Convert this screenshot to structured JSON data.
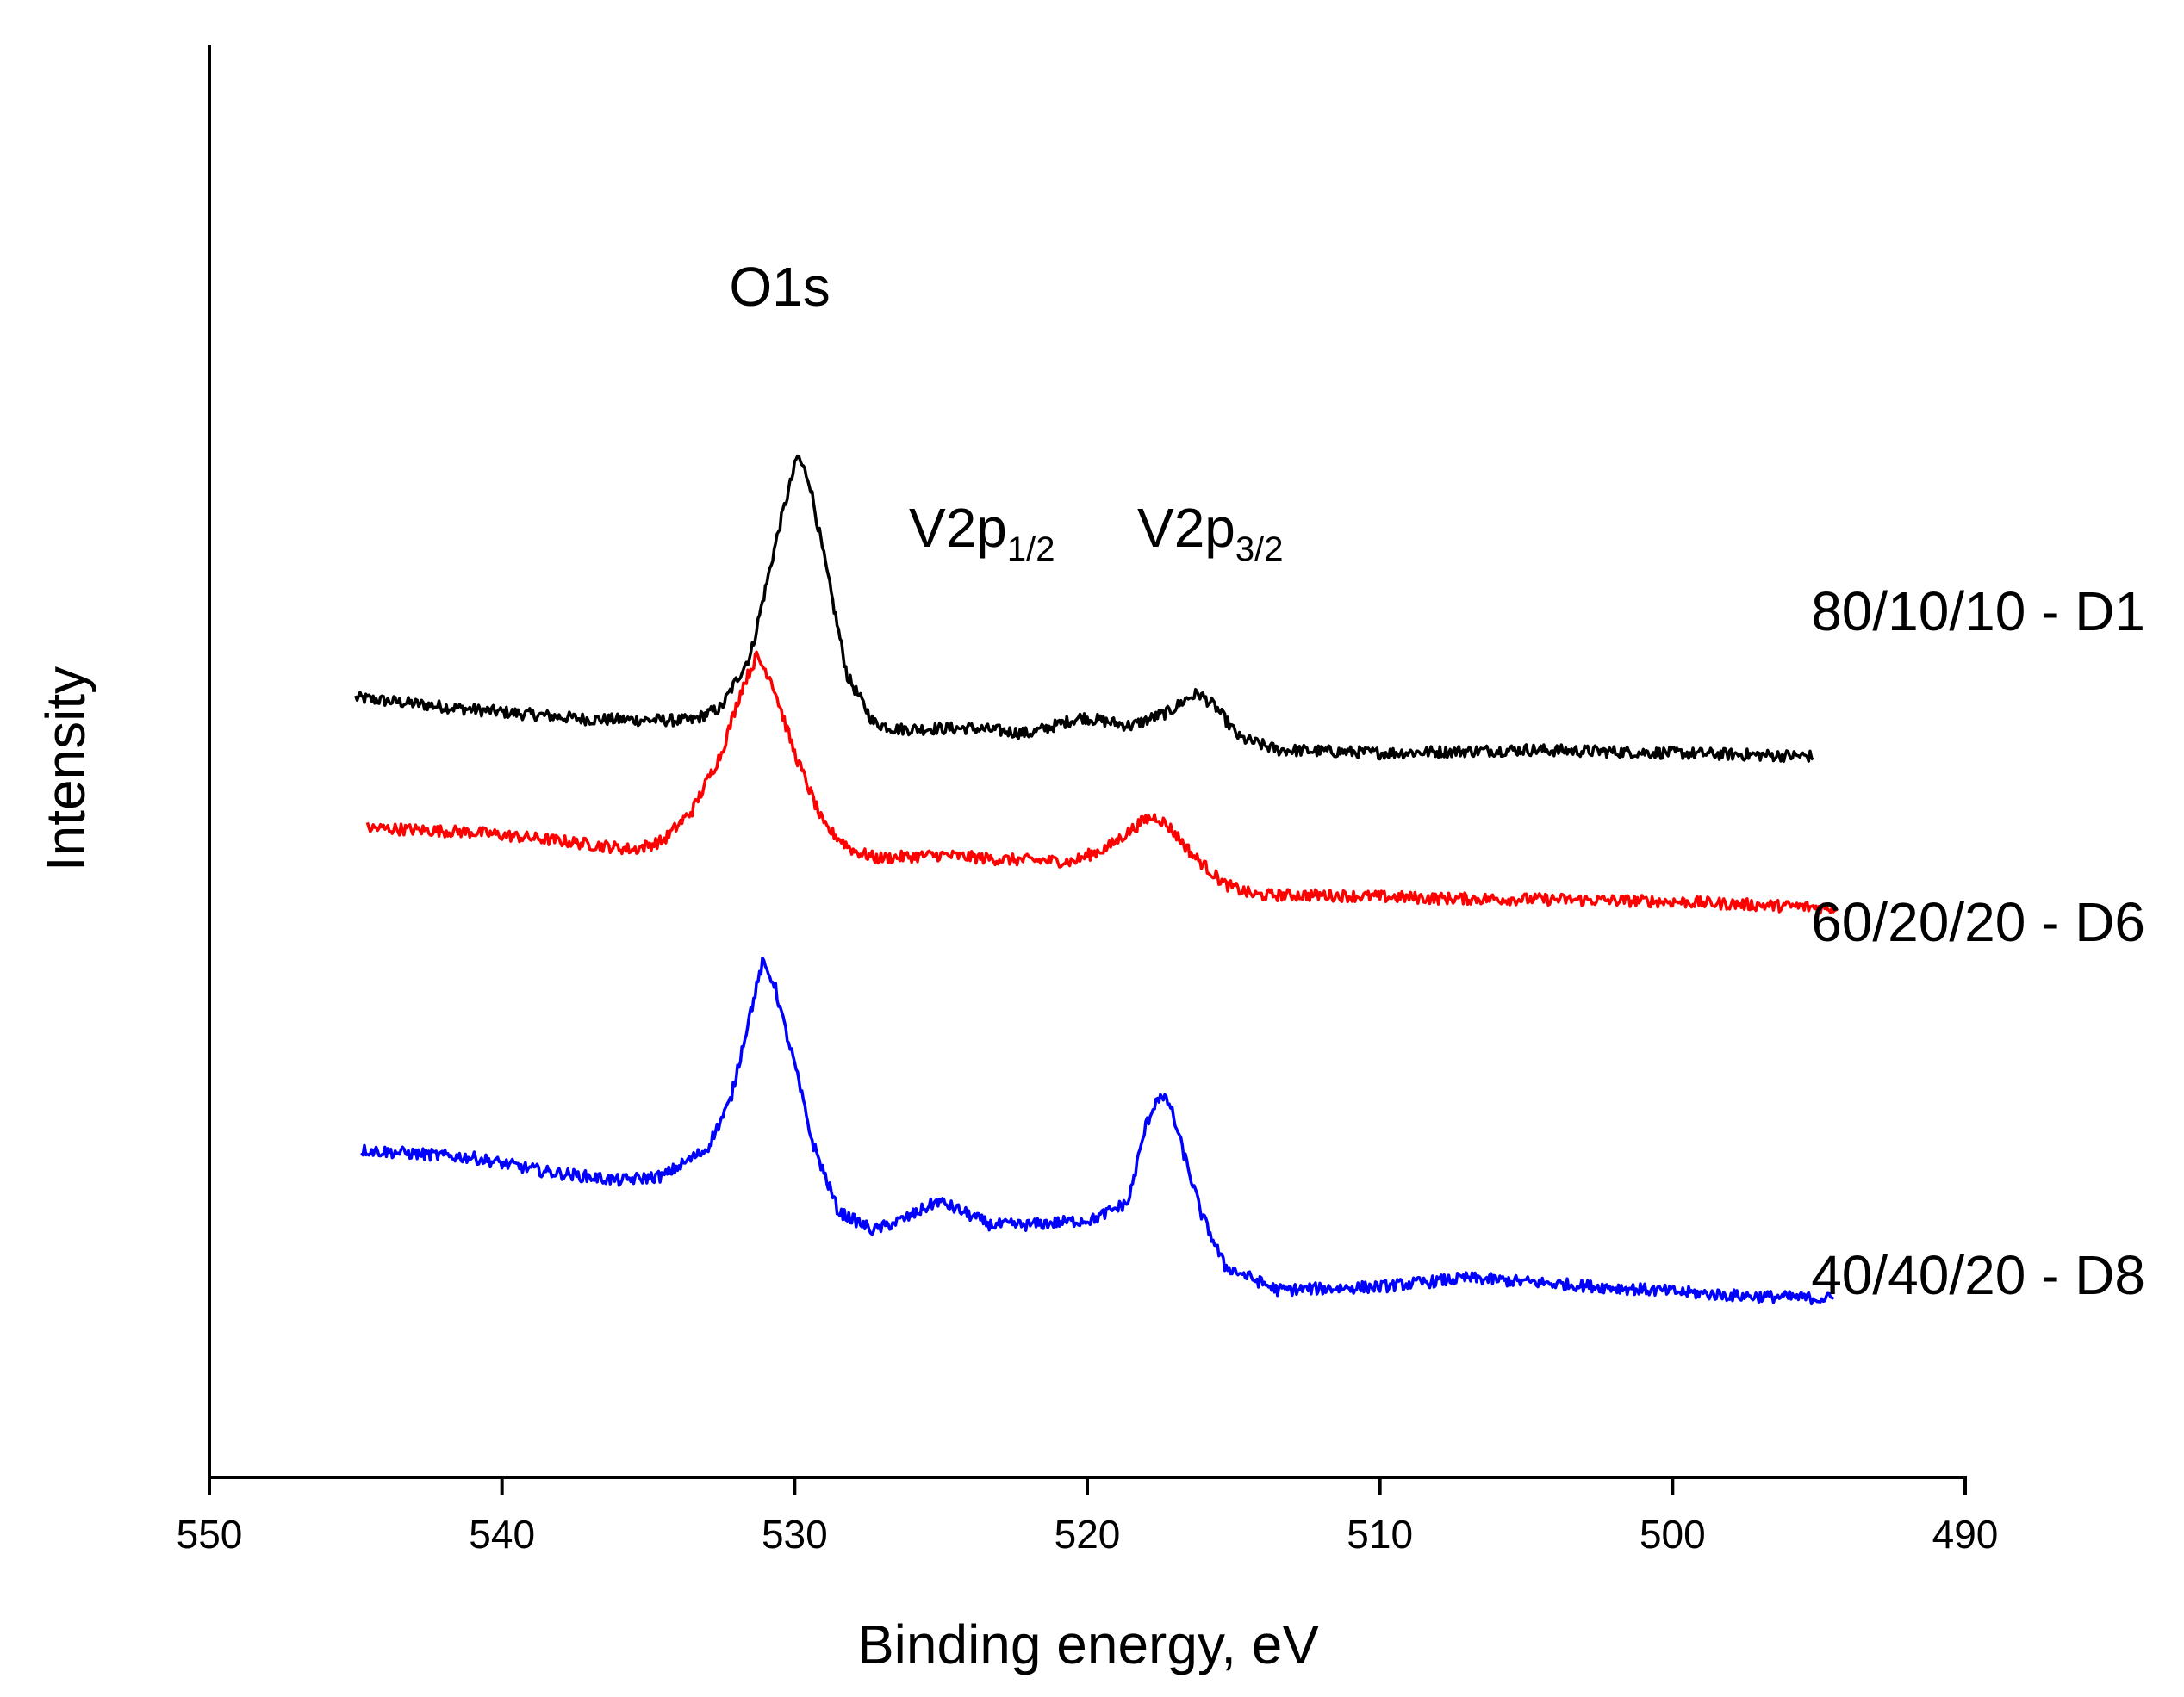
{
  "chart_data": {
    "type": "line",
    "title": "",
    "xlabel": "Binding energy, eV",
    "ylabel": "Intensity",
    "xlim": [
      550,
      490
    ],
    "x_inverted": true,
    "ylim": [
      0,
      100
    ],
    "x_ticks": [
      550,
      540,
      530,
      520,
      510,
      500,
      490
    ],
    "y_ticks_shown": false,
    "grid": false,
    "peak_annotations": [
      {
        "text": "O1s",
        "base": "O1s",
        "sub": "",
        "x": 530.3
      },
      {
        "text": "V2p1/2",
        "base": "V2p",
        "sub": "1/2",
        "x": 524.0
      },
      {
        "text": "V2p3/2",
        "base": "V2p",
        "sub": "3/2",
        "x": 516.5
      }
    ],
    "series": [
      {
        "name": "80/10/10 - D1",
        "color": "#000000",
        "x": [
          545.0,
          541,
          537,
          533.5,
          532.5,
          531.5,
          530.5,
          529.9,
          529.5,
          529.0,
          528.2,
          527.3,
          526.5,
          524,
          522,
          521.5,
          520.2,
          518.5,
          517.2,
          516.6,
          516.2,
          515.6,
          514.8,
          513.5,
          510,
          505,
          500,
          495.2
        ],
        "values": [
          59.5,
          58.4,
          57.5,
          57.4,
          58.6,
          63.5,
          75.5,
          81.8,
          79.5,
          72.5,
          61.5,
          57.2,
          56.6,
          56.7,
          56.2,
          56.6,
          57.7,
          56.9,
          58.2,
          59.4,
          59.9,
          58.6,
          55.8,
          54.7,
          54.4,
          54.7,
          54.4,
          54.1
        ]
      },
      {
        "name": "60/20/20 - D6",
        "color": "#ff0000",
        "x": [
          544.6,
          541,
          538,
          535.5,
          534.5,
          533.5,
          532.5,
          531.8,
          531.3,
          530.8,
          530.0,
          529.0,
          528.0,
          527.2,
          525,
          523,
          520.5,
          519.3,
          518.0,
          517.6,
          517.1,
          516.4,
          515.3,
          514.3,
          512,
          508,
          504,
          500,
          494.4
        ],
        "values": [
          47.5,
          47.1,
          46.3,
          45.5,
          46.3,
          49.1,
          54.4,
          60.4,
          63.3,
          61.2,
          54.4,
          47.7,
          45.4,
          44.7,
          45.0,
          44.6,
          44.4,
          45.7,
          48.3,
          48.5,
          47.3,
          45.0,
          42.3,
          41.3,
          41.3,
          41.0,
          40.9,
          40.7,
          40.1
        ]
      },
      {
        "name": "40/40/20 - D8",
        "color": "#0000ff",
        "x": [
          544.8,
          541,
          538.5,
          536,
          534.5,
          533.0,
          532.2,
          531.6,
          531.1,
          530.7,
          530.4,
          530.0,
          529.4,
          528.5,
          527.3,
          526.2,
          525.1,
          524.4,
          523.3,
          522,
          519.8,
          518.6,
          518.0,
          517.6,
          517.2,
          516.8,
          516.1,
          515.3,
          513.5,
          510,
          507,
          503,
          498,
          494.5
        ],
        "values": [
          17.8,
          17.1,
          15.8,
          15.0,
          15.4,
          17.9,
          22.3,
          29.5,
          35.0,
          33.2,
          29.8,
          25.7,
          18.6,
          12.1,
          10.4,
          11.5,
          13.1,
          12.3,
          10.9,
          10.9,
          11.4,
          13.0,
          20.0,
          22.7,
          22.2,
          18.4,
          11.9,
          7.1,
          4.9,
          5.2,
          6.0,
          5.3,
          4.4,
          4.1
        ]
      }
    ]
  }
}
